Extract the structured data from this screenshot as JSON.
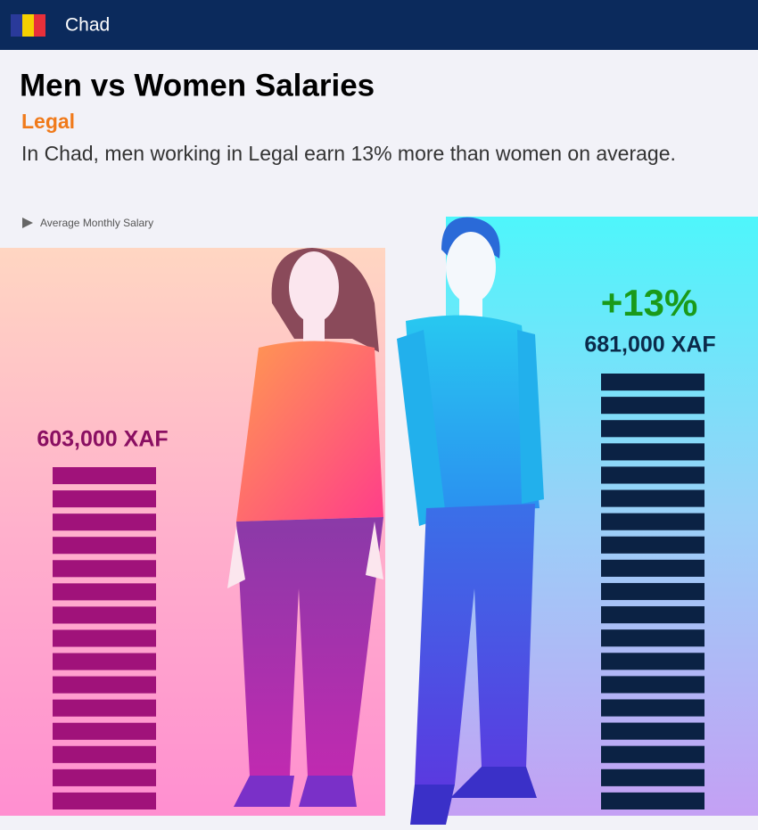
{
  "header": {
    "country": "Chad"
  },
  "title": "Men vs Women Salaries",
  "category": "Legal",
  "description": "In Chad, men working in Legal earn 13% more than women on average.",
  "legend": "Average Monthly Salary",
  "women": {
    "salary": "603,000 XAF"
  },
  "men": {
    "salary": "681,000 XAF",
    "difference": "+13%"
  }
}
